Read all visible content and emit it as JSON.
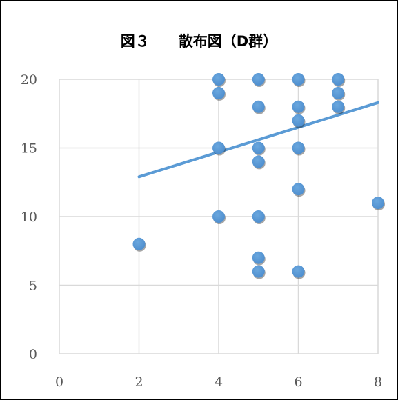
{
  "chart_data": {
    "type": "scatter",
    "title": "図３　　散布図（D群）",
    "xlabel": "",
    "ylabel": "",
    "xlim": [
      0,
      8
    ],
    "ylim": [
      0,
      20
    ],
    "xticks": [
      "0",
      "2",
      "4",
      "6",
      "8"
    ],
    "yticks": [
      "0",
      "5",
      "10",
      "15",
      "20"
    ],
    "grid": true,
    "legend": "none",
    "series": [
      {
        "points": [
          [
            2,
            8
          ],
          [
            4,
            20
          ],
          [
            4,
            19
          ],
          [
            4,
            15
          ],
          [
            4,
            10
          ],
          [
            5,
            20
          ],
          [
            5,
            18
          ],
          [
            5,
            15
          ],
          [
            5,
            14
          ],
          [
            5,
            10
          ],
          [
            5,
            7
          ],
          [
            5,
            6
          ],
          [
            6,
            20
          ],
          [
            6,
            18
          ],
          [
            6,
            17
          ],
          [
            6,
            15
          ],
          [
            6,
            12
          ],
          [
            6,
            6
          ],
          [
            7,
            20
          ],
          [
            7,
            19
          ],
          [
            7,
            18
          ],
          [
            8,
            11
          ]
        ],
        "color": "#5b9bd5"
      }
    ],
    "trendline": {
      "type": "linear",
      "x": [
        2,
        8
      ],
      "y": [
        12.9,
        18.3
      ],
      "color": "#5b9bd5"
    },
    "colors": {
      "grid": "#d9d9d9",
      "tick_text": "#595959",
      "marker": "#5b9bd5"
    }
  }
}
